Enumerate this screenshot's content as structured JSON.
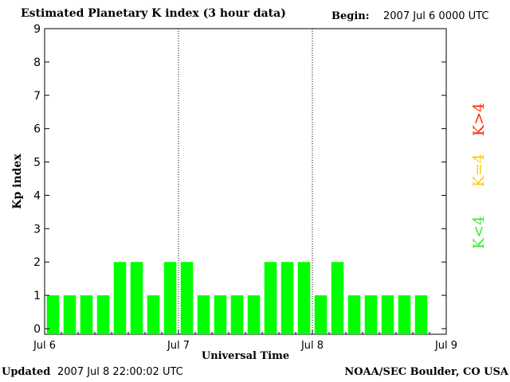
{
  "header": {
    "title": "Estimated Planetary K index (3 hour data)",
    "begin_label": "Begin:",
    "begin_value": "2007 Jul 6 0000 UTC"
  },
  "footer": {
    "updated_label": "Updated",
    "updated_value": "2007 Jul  8 22:00:02 UTC",
    "source": "NOAA/SEC Boulder, CO USA"
  },
  "legend": {
    "high": {
      "label": "K>4",
      "color": "#ff2a00"
    },
    "equal": {
      "label": "K=4",
      "color": "#ffcc00"
    },
    "low": {
      "label": "K<4",
      "color": "#33ee33"
    }
  },
  "chart_data": {
    "type": "bar",
    "ylabel": "Kp index",
    "xlabel": "Universal Time",
    "ylim": [
      0,
      9
    ],
    "yticks": [
      0,
      1,
      2,
      3,
      4,
      5,
      6,
      7,
      8,
      9
    ],
    "xlim_days": [
      0,
      3
    ],
    "xticks": [
      {
        "label": "Jul 6",
        "day": 0
      },
      {
        "label": "Jul 7",
        "day": 1
      },
      {
        "label": "Jul 8",
        "day": 2
      },
      {
        "label": "Jul 9",
        "day": 3
      }
    ],
    "day_separators": [
      1,
      2
    ],
    "interval_hours": 3,
    "values": [
      1,
      1,
      1,
      1,
      2,
      2,
      1,
      2,
      2,
      1,
      1,
      1,
      1,
      2,
      2,
      2,
      1,
      2,
      1,
      1,
      1,
      1,
      1
    ],
    "bar_color": "#00ff00"
  }
}
